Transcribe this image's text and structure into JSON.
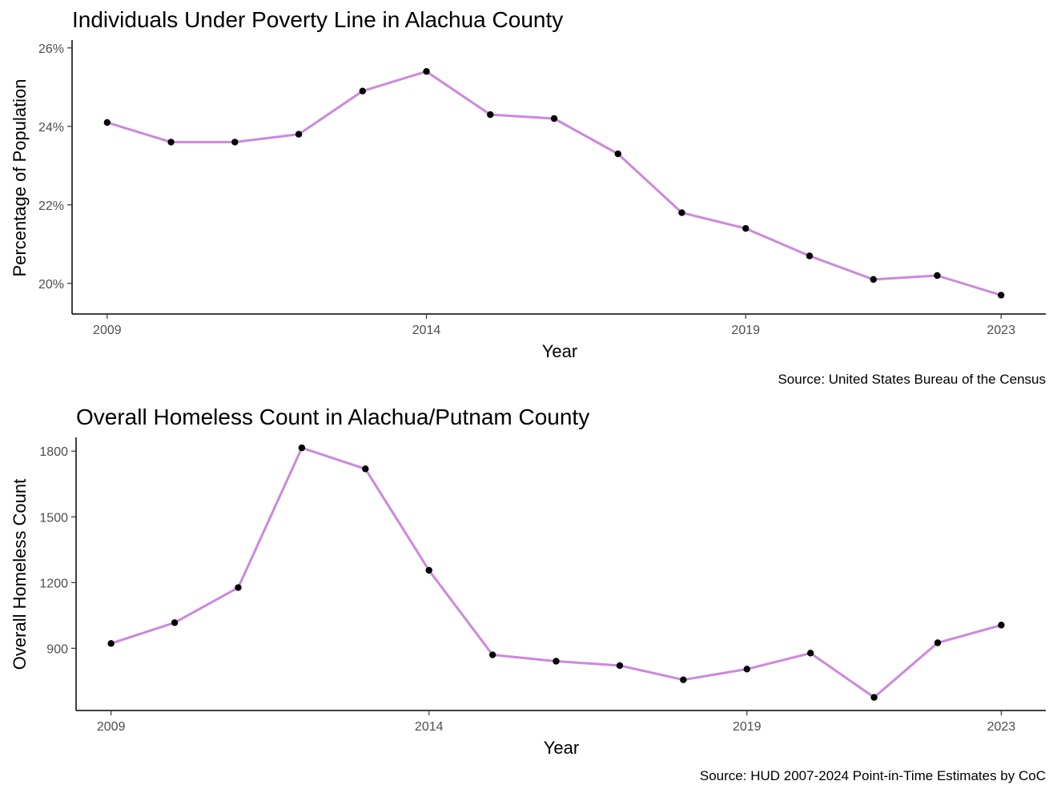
{
  "chart_data": [
    {
      "type": "line",
      "title": "Individuals Under Poverty Line in Alachua County",
      "xlabel": "Year",
      "ylabel": "Percentage of Population",
      "caption": "Source: United States Bureau of the Census",
      "x": [
        2009,
        2010,
        2011,
        2012,
        2013,
        2014,
        2015,
        2016,
        2017,
        2018,
        2019,
        2020,
        2021,
        2022,
        2023
      ],
      "y": [
        24.1,
        23.6,
        23.6,
        23.8,
        24.9,
        25.4,
        24.3,
        24.2,
        23.3,
        21.8,
        21.4,
        20.7,
        20.1,
        20.2,
        19.7
      ],
      "xticks": [
        2009,
        2014,
        2019,
        2023
      ],
      "xtick_labels": [
        "2009",
        "2014",
        "2019",
        "2023"
      ],
      "yticks": [
        20,
        22,
        24,
        26
      ],
      "ytick_labels": [
        "20%",
        "22%",
        "24%",
        "26%"
      ],
      "xlim": [
        2008.45,
        2023.7
      ],
      "ylim": [
        19.22,
        26.2
      ],
      "line_color": "#cc88dd",
      "point_color": "#000000",
      "grid": false
    },
    {
      "type": "line",
      "title": "Overall Homeless Count in Alachua/Putnam County",
      "xlabel": "Year",
      "ylabel": "Overall Homeless Count",
      "caption": "Source: HUD 2007-2024 Point-in-Time Estimates by CoC",
      "x": [
        2009,
        2010,
        2011,
        2012,
        2013,
        2014,
        2015,
        2016,
        2017,
        2018,
        2019,
        2020,
        2021,
        2022,
        2023
      ],
      "y": [
        922,
        1017,
        1177,
        1815,
        1719,
        1256,
        870,
        841,
        821,
        756,
        805,
        878,
        676,
        925,
        1006
      ],
      "xticks": [
        2009,
        2014,
        2019,
        2023
      ],
      "xtick_labels": [
        "2009",
        "2014",
        "2019",
        "2023"
      ],
      "yticks": [
        900,
        1200,
        1500,
        1800
      ],
      "ytick_labels": [
        "900",
        "1200",
        "1500",
        "1800"
      ],
      "xlim": [
        2008.45,
        2023.7
      ],
      "ylim": [
        616,
        1863
      ],
      "line_color": "#cc88dd",
      "point_color": "#000000",
      "grid": false
    }
  ]
}
